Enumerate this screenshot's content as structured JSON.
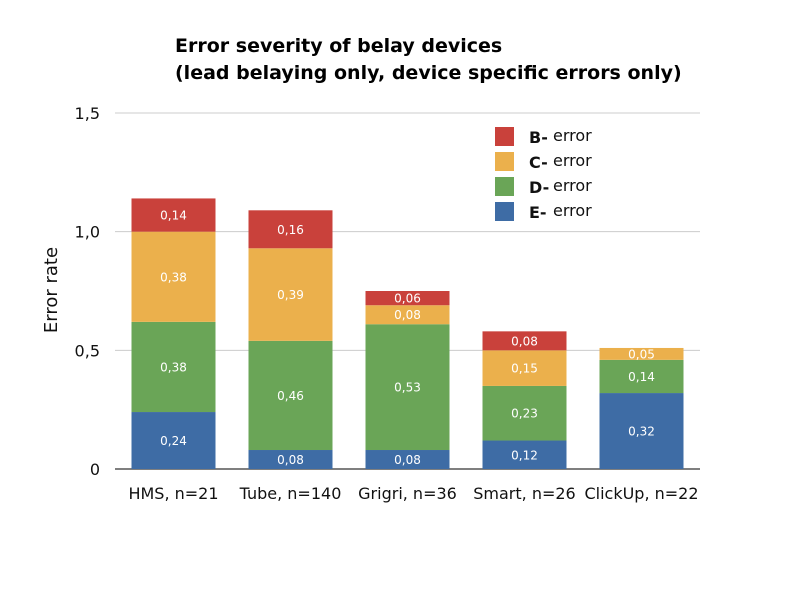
{
  "chart_data": {
    "type": "bar",
    "stacked": true,
    "title": [
      "Error severity of belay devices",
      "(lead belaying only, device specific errors only)"
    ],
    "xlabel": "",
    "ylabel": "Error rate",
    "ylim": [
      0,
      1.5
    ],
    "yticks": [
      0,
      0.5,
      1.0,
      1.5
    ],
    "ytick_labels": [
      "0",
      "0,5",
      "1,0",
      "1,5"
    ],
    "grid": true,
    "legend_position": "top-right",
    "categories": [
      "HMS, n=21",
      "Tube, n=140",
      "Grigri, n=36",
      "Smart, n=26",
      "ClickUp, n=22"
    ],
    "series": [
      {
        "name": "E-error",
        "legend_prefix": "E-",
        "legend_suffix": "error",
        "color": "#3e6ca5",
        "values": [
          0.24,
          0.08,
          0.08,
          0.12,
          0.32
        ],
        "labels": [
          "0,24",
          "0,08",
          "0,08",
          "0,12",
          "0,32"
        ]
      },
      {
        "name": "D-error",
        "legend_prefix": "D-",
        "legend_suffix": "error",
        "color": "#6aa557",
        "values": [
          0.38,
          0.46,
          0.53,
          0.23,
          0.14
        ],
        "labels": [
          "0,38",
          "0,46",
          "0,53",
          "0,23",
          "0,14"
        ]
      },
      {
        "name": "C-error",
        "legend_prefix": "C-",
        "legend_suffix": "error",
        "color": "#ebb04c",
        "values": [
          0.38,
          0.39,
          0.08,
          0.15,
          0.05
        ],
        "labels": [
          "0,38",
          "0,39",
          "0,08",
          "0,15",
          "0,05"
        ]
      },
      {
        "name": "B-error",
        "legend_prefix": "B-",
        "legend_suffix": "error",
        "color": "#c9413b",
        "values": [
          0.14,
          0.16,
          0.06,
          0.08,
          0
        ],
        "labels": [
          "0,14",
          "0,16",
          "0,06",
          "0,08",
          ""
        ]
      }
    ]
  }
}
